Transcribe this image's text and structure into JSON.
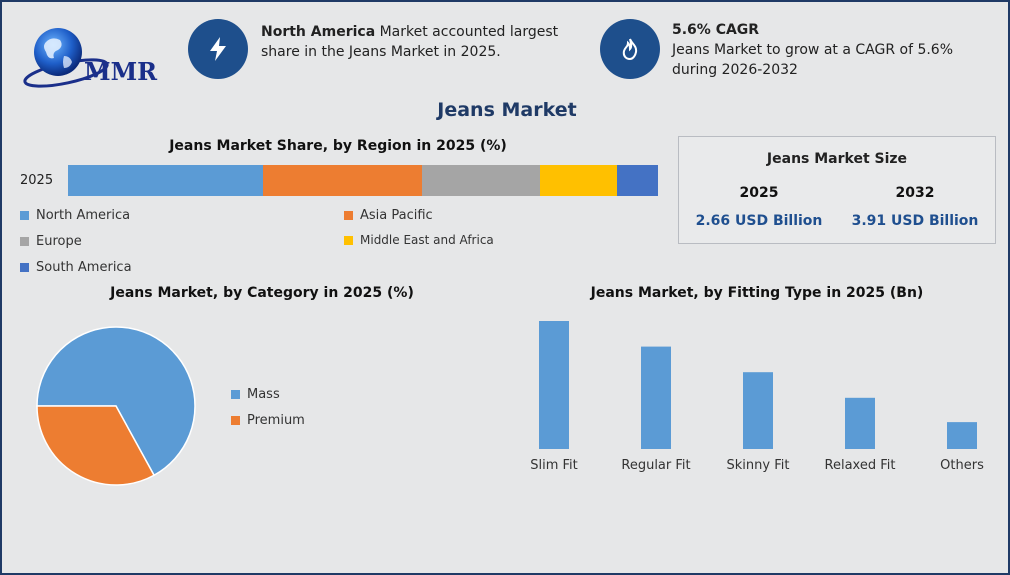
{
  "logo": {
    "text": "MMR"
  },
  "header": {
    "info1": {
      "icon": "lightning-icon",
      "bold": "North America",
      "text": " Market accounted largest share in the Jeans Market in 2025."
    },
    "info2": {
      "icon": "fire-icon",
      "bold": "5.6% CAGR",
      "text": "Jeans Market to grow at a CAGR of 5.6% during 2026-2032"
    }
  },
  "title": "Jeans Market",
  "market_size": {
    "title": "Jeans Market Size",
    "year1": "2025",
    "value1": "2.66 USD Billion",
    "year2": "2032",
    "value2": "3.91 USD Billion"
  },
  "colors": {
    "north_america": "#5b9bd5",
    "asia_pacific": "#ed7d31",
    "europe": "#a5a5a5",
    "mea": "#ffc000",
    "south_america": "#4472c4",
    "bar": "#5b9bd5"
  },
  "chart_data": [
    {
      "type": "bar",
      "title": "Jeans Market Share, by Region in 2025 (%)",
      "stacked": true,
      "orientation": "horizontal",
      "categories": [
        "2025"
      ],
      "series": [
        {
          "name": "North America",
          "values": [
            33
          ]
        },
        {
          "name": "Asia Pacific",
          "values": [
            27
          ]
        },
        {
          "name": "Europe",
          "values": [
            20
          ]
        },
        {
          "name": "Middle East and Africa",
          "values": [
            13
          ]
        },
        {
          "name": "South America",
          "values": [
            7
          ]
        }
      ]
    },
    {
      "type": "pie",
      "title": "Jeans Market, by Category in 2025 (%)",
      "labels": [
        "Mass",
        "Premium"
      ],
      "values": [
        67,
        33
      ],
      "legend": "right"
    },
    {
      "type": "bar",
      "title": "Jeans Market, by Fitting Type in 2025 (Bn)",
      "categories": [
        "Slim Fit",
        "Regular Fit",
        "Skinny Fit",
        "Relaxed Fit",
        "Others"
      ],
      "values": [
        1.0,
        0.8,
        0.6,
        0.4,
        0.21
      ],
      "ylim": [
        0,
        1.0
      ]
    }
  ]
}
